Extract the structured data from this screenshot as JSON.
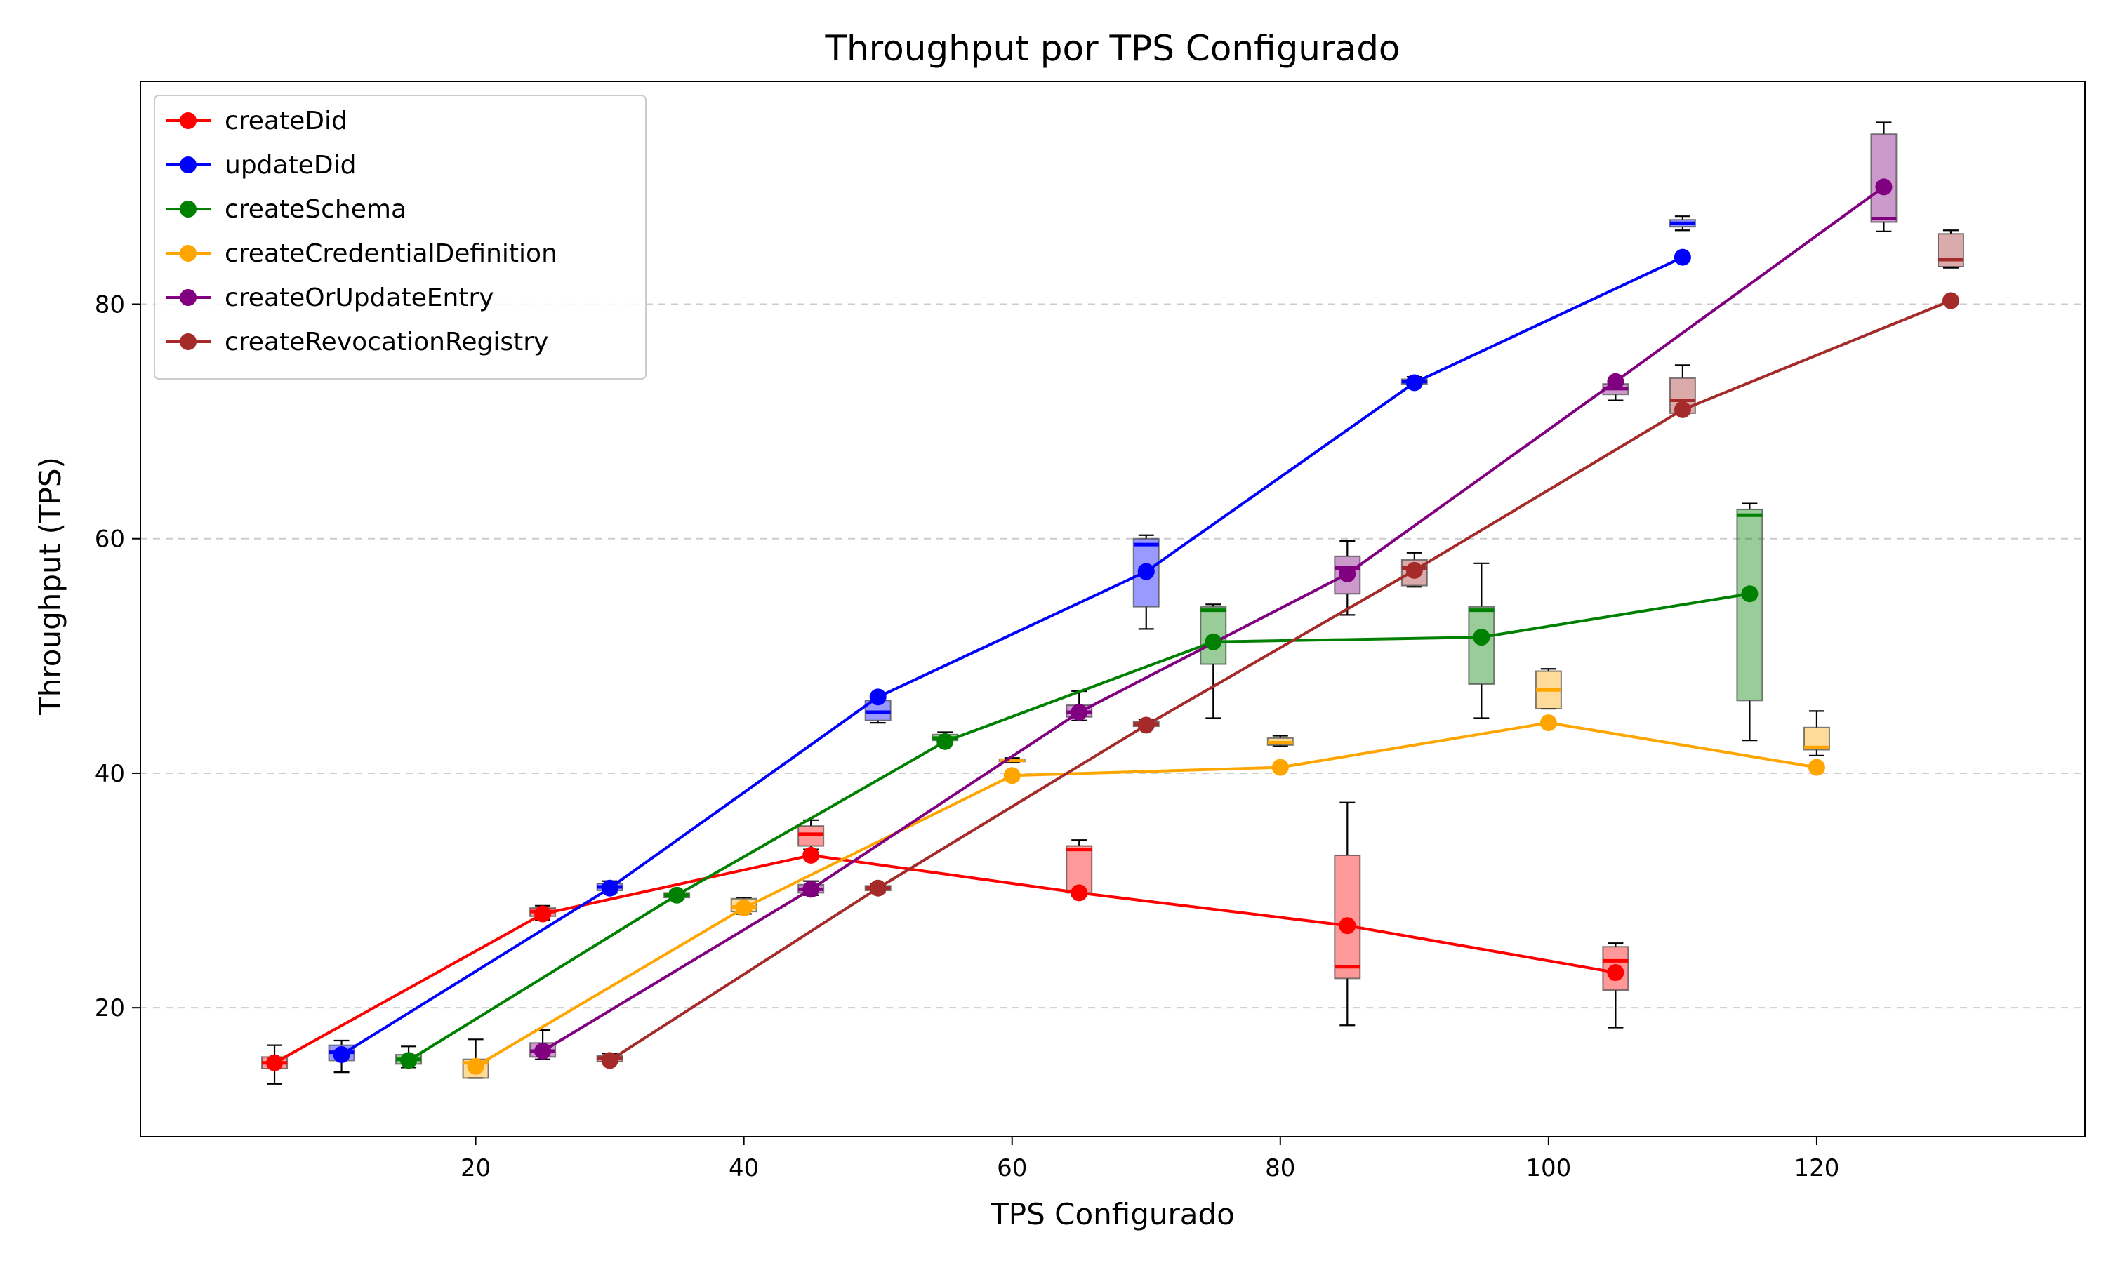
{
  "chart_data": {
    "type": "line",
    "title": "Throughput por TPS Configurado",
    "xlabel": "TPS Configurado",
    "ylabel": "Throughput (TPS)",
    "xlim": [
      -5,
      140
    ],
    "ylim": [
      9,
      99
    ],
    "xticks": [
      20,
      40,
      60,
      80,
      100,
      120
    ],
    "yticks": [
      20,
      40,
      60,
      80
    ],
    "grid": "y-dashed",
    "legend_position": "top-left",
    "series": [
      {
        "name": "createDid",
        "color": "#ff0000",
        "x": [
          5,
          25,
          45,
          65,
          85,
          105
        ],
        "y": [
          15.3,
          28.0,
          33.0,
          29.8,
          27.0,
          23.0
        ],
        "boxes": [
          {
            "min": 13.5,
            "q1": 14.8,
            "median": 15.3,
            "q3": 15.8,
            "max": 16.8
          },
          {
            "min": 27.5,
            "q1": 27.8,
            "median": 28.2,
            "q3": 28.5,
            "max": 28.7
          },
          {
            "min": 33.5,
            "q1": 33.8,
            "median": 34.8,
            "q3": 35.5,
            "max": 36.0
          },
          {
            "min": 29.5,
            "q1": 29.8,
            "median": 33.5,
            "q3": 33.8,
            "max": 34.3
          },
          {
            "min": 18.5,
            "q1": 22.5,
            "median": 23.5,
            "q3": 33.0,
            "max": 37.5
          },
          {
            "min": 18.3,
            "q1": 21.5,
            "median": 24.0,
            "q3": 25.2,
            "max": 25.5
          }
        ]
      },
      {
        "name": "updateDid",
        "color": "#0000ff",
        "x": [
          10,
          30,
          50,
          70,
          90,
          110
        ],
        "y": [
          16.0,
          30.2,
          46.5,
          57.2,
          73.3,
          84.0
        ],
        "boxes": [
          {
            "min": 14.5,
            "q1": 15.5,
            "median": 16.2,
            "q3": 16.8,
            "max": 17.2
          },
          {
            "min": 29.8,
            "q1": 30.0,
            "median": 30.3,
            "q3": 30.6,
            "max": 30.8
          },
          {
            "min": 44.3,
            "q1": 44.5,
            "median": 45.2,
            "q3": 46.2,
            "max": 46.8
          },
          {
            "min": 52.3,
            "q1": 54.2,
            "median": 59.5,
            "q3": 60.0,
            "max": 60.3
          },
          {
            "min": 73.1,
            "q1": 73.2,
            "median": 73.4,
            "q3": 73.6,
            "max": 73.8
          },
          {
            "min": 86.3,
            "q1": 86.6,
            "median": 86.9,
            "q3": 87.2,
            "max": 87.5
          }
        ]
      },
      {
        "name": "createSchema",
        "color": "#008000",
        "x": [
          15,
          35,
          55,
          75,
          95,
          115
        ],
        "y": [
          15.5,
          29.6,
          42.7,
          51.2,
          51.6,
          55.3
        ],
        "boxes": [
          {
            "min": 14.9,
            "q1": 15.2,
            "median": 15.6,
            "q3": 16.0,
            "max": 16.7
          },
          {
            "min": 29.3,
            "q1": 29.4,
            "median": 29.6,
            "q3": 29.8,
            "max": 29.9
          },
          {
            "min": 42.6,
            "q1": 42.8,
            "median": 43.0,
            "q3": 43.3,
            "max": 43.5
          },
          {
            "min": 44.7,
            "q1": 49.3,
            "median": 53.9,
            "q3": 54.2,
            "max": 54.4
          },
          {
            "min": 44.7,
            "q1": 47.6,
            "median": 53.9,
            "q3": 54.2,
            "max": 57.9
          },
          {
            "min": 42.8,
            "q1": 46.2,
            "median": 62.0,
            "q3": 62.5,
            "max": 63.0
          }
        ]
      },
      {
        "name": "createCredentialDefinition",
        "color": "#ffa500",
        "x": [
          20,
          40,
          60,
          80,
          100,
          120
        ],
        "y": [
          15.0,
          28.5,
          39.8,
          40.5,
          44.3,
          40.5
        ],
        "boxes": [
          {
            "min": 14.0,
            "q1": 14.0,
            "median": 15.3,
            "q3": 15.6,
            "max": 17.3
          },
          {
            "min": 28.0,
            "q1": 28.2,
            "median": 28.6,
            "q3": 29.3,
            "max": 29.4
          },
          {
            "min": 40.9,
            "q1": 41.0,
            "median": 41.1,
            "q3": 41.2,
            "max": 41.3
          },
          {
            "min": 42.3,
            "q1": 42.4,
            "median": 42.6,
            "q3": 43.0,
            "max": 43.2
          },
          {
            "min": 45.5,
            "q1": 45.5,
            "median": 47.1,
            "q3": 48.7,
            "max": 48.9
          },
          {
            "min": 41.5,
            "q1": 42.0,
            "median": 42.2,
            "q3": 43.9,
            "max": 45.3
          }
        ]
      },
      {
        "name": "createOrUpdateEntry",
        "color": "#800080",
        "x": [
          25,
          45,
          65,
          85,
          105,
          125
        ],
        "y": [
          16.3,
          30.1,
          45.2,
          57.0,
          73.4,
          90.0
        ],
        "boxes": [
          {
            "min": 15.6,
            "q1": 15.8,
            "median": 16.3,
            "q3": 17.0,
            "max": 18.1
          },
          {
            "min": 29.6,
            "q1": 29.8,
            "median": 30.1,
            "q3": 30.5,
            "max": 30.8
          },
          {
            "min": 44.5,
            "q1": 44.8,
            "median": 45.2,
            "q3": 45.8,
            "max": 47.0
          },
          {
            "min": 53.5,
            "q1": 55.3,
            "median": 57.5,
            "q3": 58.5,
            "max": 59.8
          },
          {
            "min": 71.8,
            "q1": 72.3,
            "median": 72.8,
            "q3": 73.2,
            "max": 73.5
          },
          {
            "min": 86.2,
            "q1": 87.0,
            "median": 87.3,
            "q3": 94.5,
            "max": 95.5
          }
        ]
      },
      {
        "name": "createRevocationRegistry",
        "color": "#a52a2a",
        "x": [
          30,
          50,
          70,
          90,
          110,
          130
        ],
        "y": [
          15.5,
          30.2,
          44.1,
          57.3,
          71.0,
          80.3
        ],
        "boxes": [
          {
            "min": 15.3,
            "q1": 15.4,
            "median": 15.7,
            "q3": 15.9,
            "max": 16.1
          },
          {
            "min": 29.9,
            "q1": 30.0,
            "median": 30.2,
            "q3": 30.4,
            "max": 30.6
          },
          {
            "min": 43.9,
            "q1": 44.0,
            "median": 44.2,
            "q3": 44.4,
            "max": 44.6
          },
          {
            "min": 55.9,
            "q1": 56.0,
            "median": 57.5,
            "q3": 58.2,
            "max": 58.8
          },
          {
            "min": 70.7,
            "q1": 70.7,
            "median": 71.8,
            "q3": 73.7,
            "max": 74.8
          },
          {
            "min": 83.1,
            "q1": 83.2,
            "median": 83.8,
            "q3": 86.0,
            "max": 86.3
          }
        ]
      }
    ]
  }
}
